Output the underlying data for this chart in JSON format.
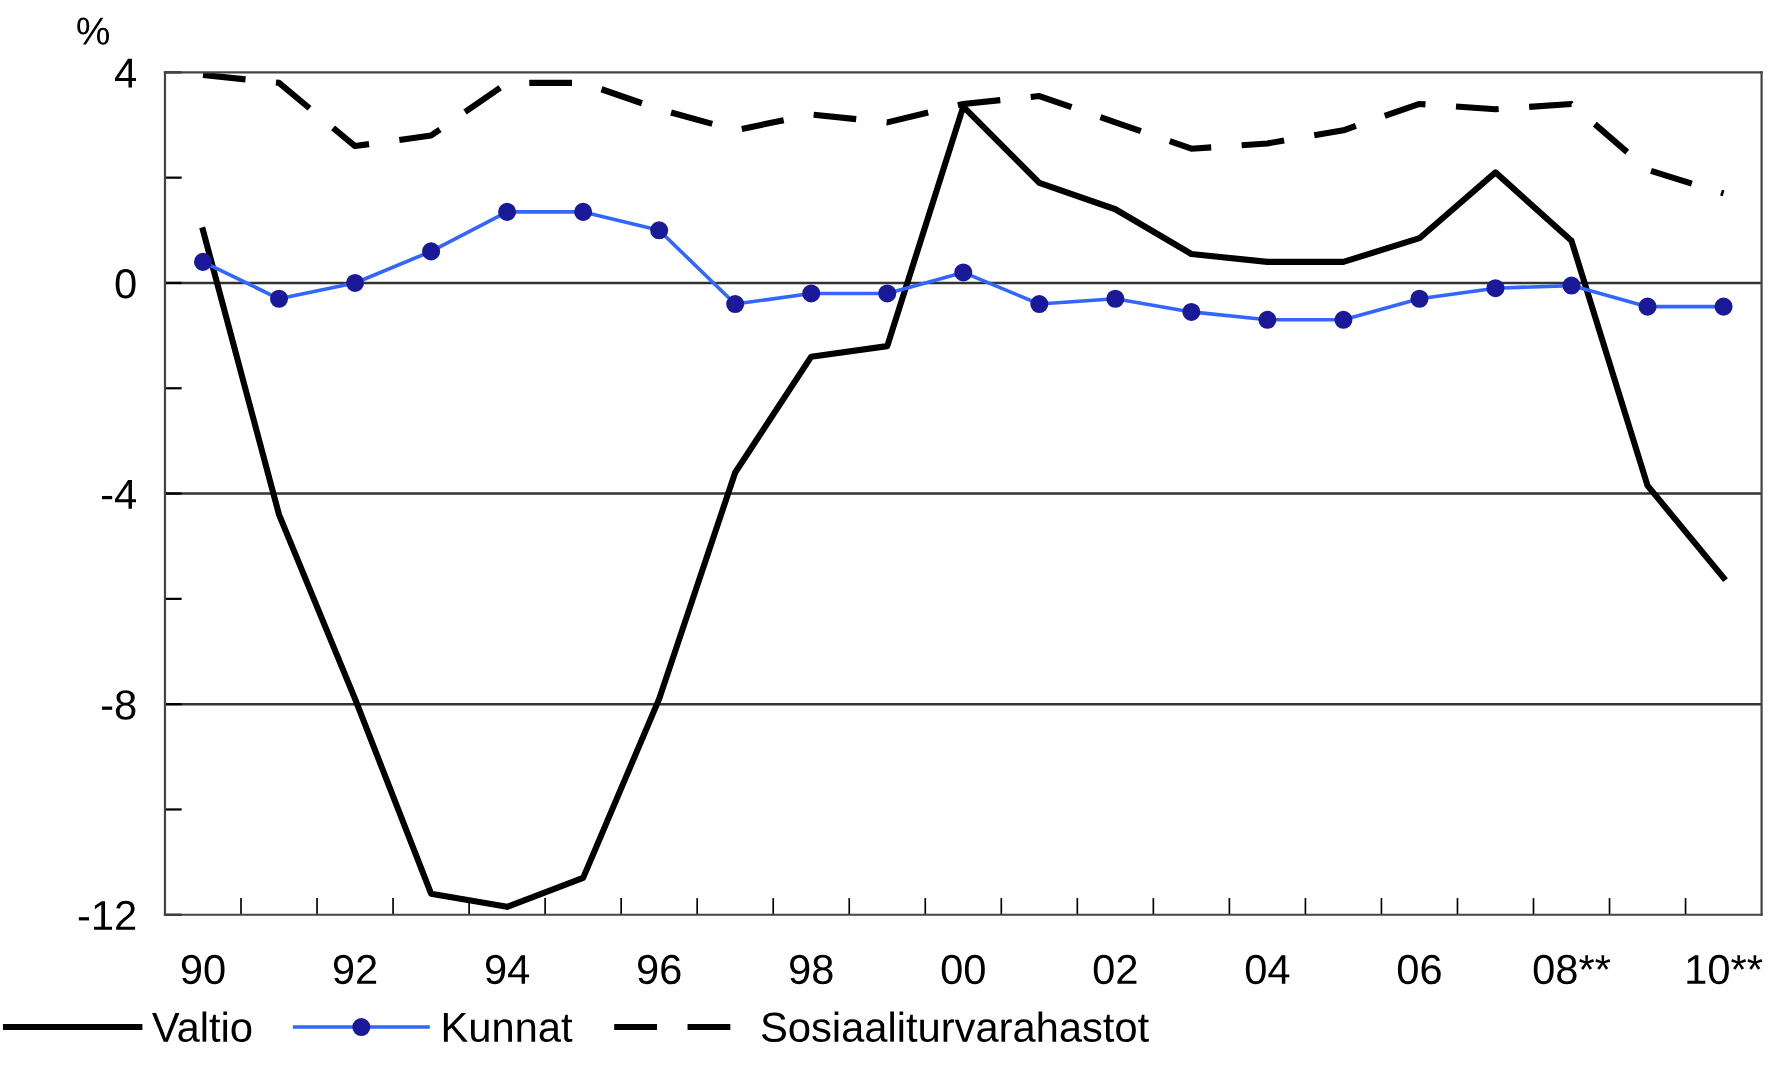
{
  "chart_data": {
    "type": "line",
    "ylabel": "%",
    "categories": [
      "90",
      null,
      "92",
      null,
      "94",
      null,
      "96",
      null,
      "98",
      null,
      "00",
      null,
      "02",
      null,
      "04",
      null,
      "06",
      null,
      "08**",
      null,
      "10**"
    ],
    "series": [
      {
        "name": "Valtio",
        "color": "#000000",
        "line_style": "solid",
        "marker": "none",
        "values": [
          1.0,
          -4.4,
          -7.9,
          -11.6,
          -11.85,
          -11.3,
          -7.9,
          -3.6,
          -1.4,
          -1.2,
          3.35,
          1.9,
          1.4,
          0.55,
          0.4,
          0.4,
          0.85,
          2.1,
          0.8,
          -3.85,
          -5.6
        ]
      },
      {
        "name": "Kunnat",
        "color": "#3366ff",
        "line_style": "solid",
        "marker": "circle",
        "values": [
          0.4,
          -0.3,
          0.0,
          0.6,
          1.35,
          1.35,
          1.0,
          -0.4,
          -0.2,
          -0.2,
          0.2,
          -0.4,
          -0.3,
          -0.55,
          -0.7,
          -0.7,
          -0.3,
          -0.1,
          -0.05,
          -0.45,
          -0.45
        ]
      },
      {
        "name": "Sosiaaliturvarahastot",
        "color": "#000000",
        "line_style": "dashed",
        "marker": "none",
        "values": [
          3.95,
          3.8,
          2.6,
          2.8,
          3.8,
          3.8,
          3.3,
          2.9,
          3.2,
          3.05,
          3.4,
          3.55,
          3.05,
          2.55,
          2.65,
          2.9,
          3.4,
          3.3,
          3.4,
          2.15,
          1.7
        ]
      }
    ],
    "ylim": [
      -12,
      4
    ],
    "yticks": [
      -12,
      {
        "value": -10,
        "label": null
      },
      -8,
      {
        "value": -6,
        "label": null
      },
      -4,
      {
        "value": -2,
        "label": null
      },
      0,
      {
        "value": 2,
        "label": null
      },
      4
    ],
    "grid": "y",
    "legend": "bottom"
  }
}
